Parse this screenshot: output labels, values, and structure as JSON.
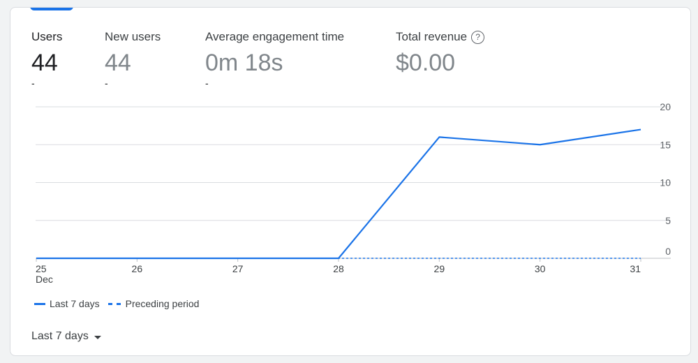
{
  "metrics": {
    "users": {
      "label": "Users",
      "value": "44",
      "delta": "-"
    },
    "new_users": {
      "label": "New users",
      "value": "44",
      "delta": "-"
    },
    "engagement": {
      "label": "Average engagement time",
      "value": "0m 18s",
      "delta": "-"
    },
    "revenue": {
      "label": "Total revenue",
      "value": "$0.00",
      "help_icon": "help-circle-icon"
    }
  },
  "legend": {
    "current": "Last 7 days",
    "previous": "Preceding period"
  },
  "date_range": {
    "label": "Last 7 days",
    "icon": "caret-down-icon"
  },
  "colors": {
    "accent": "#1a73e8",
    "grid": "#dadce0"
  },
  "chart_data": {
    "type": "line",
    "x": [
      "25",
      "26",
      "27",
      "28",
      "29",
      "30",
      "31"
    ],
    "x_sublabel": "Dec",
    "y_ticks": [
      0,
      5,
      10,
      15,
      20
    ],
    "ylim": [
      0,
      20
    ],
    "series": [
      {
        "name": "Last 7 days",
        "values": [
          0,
          0,
          0,
          0,
          16,
          15,
          17
        ],
        "style": "solid"
      },
      {
        "name": "Preceding period",
        "values": [
          0,
          0,
          0,
          0,
          0,
          0,
          0
        ],
        "style": "dashed"
      }
    ]
  }
}
